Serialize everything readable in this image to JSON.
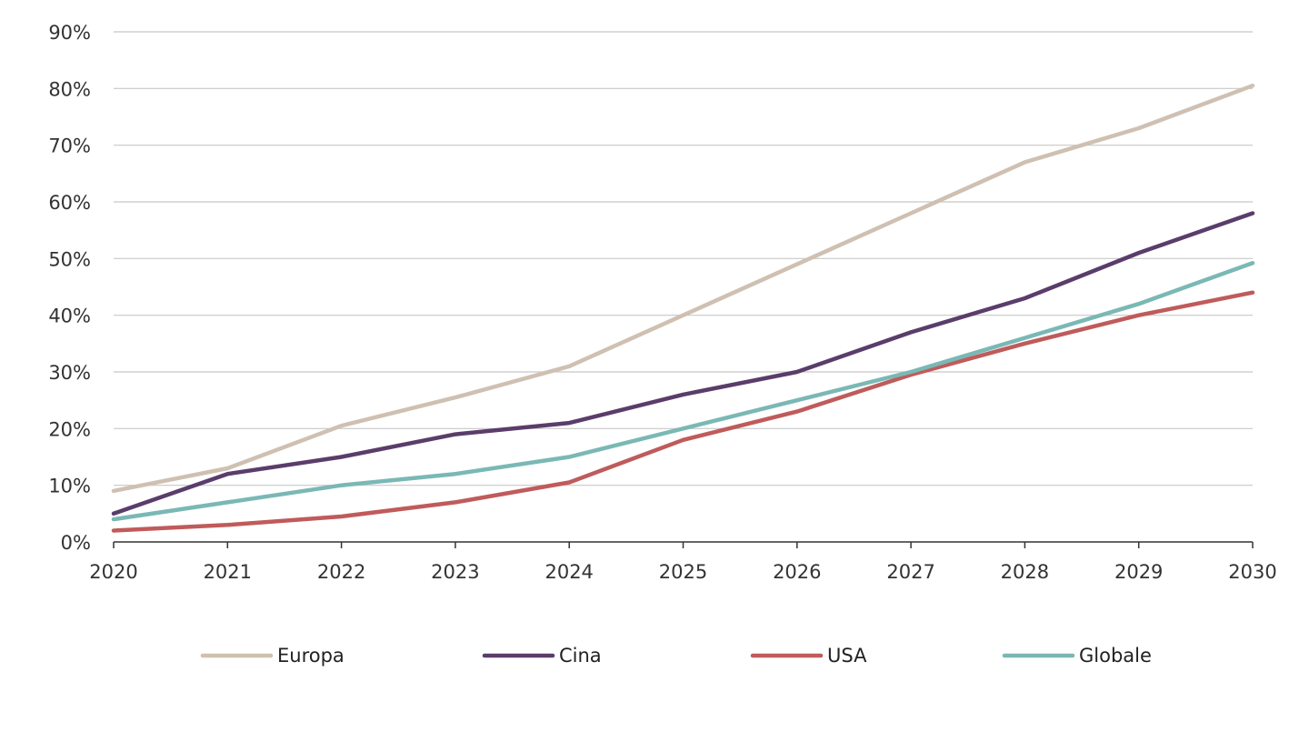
{
  "chart_data": {
    "type": "line",
    "title": "",
    "xlabel": "",
    "ylabel": "",
    "x": [
      2020,
      2021,
      2022,
      2023,
      2024,
      2025,
      2026,
      2027,
      2028,
      2029,
      2030
    ],
    "x_tick_labels": [
      "2020",
      "2021",
      "2022",
      "2023",
      "2024",
      "2025",
      "2026",
      "2027",
      "2028",
      "2029",
      "2030"
    ],
    "ylim": [
      0,
      90
    ],
    "y_ticks": [
      0,
      10,
      20,
      30,
      40,
      50,
      60,
      70,
      80,
      90
    ],
    "y_tick_labels": [
      "0%",
      "10%",
      "20%",
      "30%",
      "40%",
      "50%",
      "60%",
      "70%",
      "80%",
      "90%"
    ],
    "grid": "horizontal",
    "legend_position": "bottom",
    "series": [
      {
        "name": "Europa",
        "color": "#cfc0b2",
        "values": [
          9,
          13,
          20.5,
          25.5,
          31,
          40,
          49,
          58,
          67,
          73,
          80.5
        ]
      },
      {
        "name": "Cina",
        "color": "#5a3d6b",
        "values": [
          5,
          12,
          15,
          19,
          21,
          26,
          30,
          37,
          43,
          51,
          58
        ]
      },
      {
        "name": "USA",
        "color": "#c05b5b",
        "values": [
          2,
          3,
          4.5,
          7,
          10.5,
          18,
          23,
          29.5,
          35,
          40,
          44
        ]
      },
      {
        "name": "Globale",
        "color": "#7ab8b5",
        "values": [
          4,
          7,
          10,
          12,
          15,
          20,
          25,
          30,
          36,
          42,
          49.2
        ]
      }
    ]
  }
}
